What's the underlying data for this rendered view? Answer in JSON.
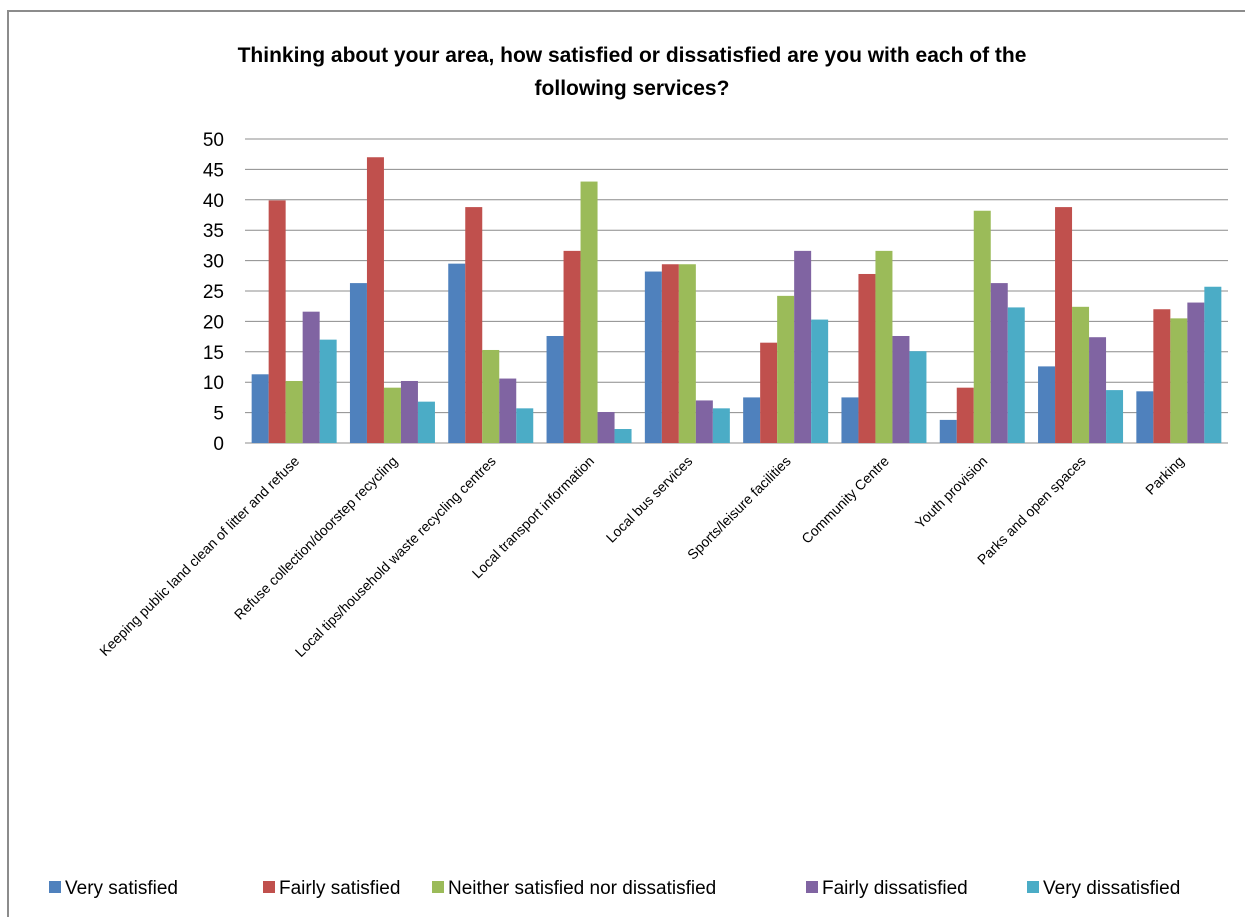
{
  "chart_data": {
    "type": "bar",
    "title_line1": "Thinking about your area, how satisfied or dissatisfied are you with each of the",
    "title_line2": "following services?",
    "ylim": [
      0,
      50
    ],
    "yticks": [
      0,
      5,
      10,
      15,
      20,
      25,
      30,
      35,
      40,
      45,
      50
    ],
    "grid": true,
    "legend_position": "bottom",
    "categories": [
      "Keeping public land clean of litter and refuse",
      "Refuse collection/doorstep recycling",
      "Local tips/household waste recycling centres",
      "Local transport information",
      "Local bus services",
      "Sports/leisure facilities",
      "Community Centre",
      "Youth provision",
      "Parks and open spaces",
      "Parking"
    ],
    "series": [
      {
        "name": "Very satisfied",
        "color": "#4F81BD",
        "values": [
          11.3,
          26.3,
          29.5,
          17.6,
          28.2,
          7.5,
          7.5,
          3.8,
          12.6,
          8.5
        ]
      },
      {
        "name": "Fairly satisfied",
        "color": "#C0504D",
        "values": [
          39.9,
          47.0,
          38.8,
          31.6,
          29.4,
          16.5,
          27.8,
          9.1,
          38.8,
          22.0
        ]
      },
      {
        "name": "Neither satisfied nor dissatisfied",
        "color": "#9BBB59",
        "values": [
          10.2,
          9.1,
          15.3,
          43.0,
          29.4,
          24.2,
          31.6,
          38.2,
          22.4,
          20.5
        ]
      },
      {
        "name": "Fairly dissatisfied",
        "color": "#8064A2",
        "values": [
          21.6,
          10.2,
          10.6,
          5.1,
          7.0,
          31.6,
          17.6,
          26.3,
          17.4,
          23.1
        ]
      },
      {
        "name": "Very dissatisfied",
        "color": "#4BACC6",
        "values": [
          17.0,
          6.8,
          5.7,
          2.3,
          5.7,
          20.3,
          15.1,
          22.3,
          8.7,
          25.7
        ]
      }
    ]
  }
}
